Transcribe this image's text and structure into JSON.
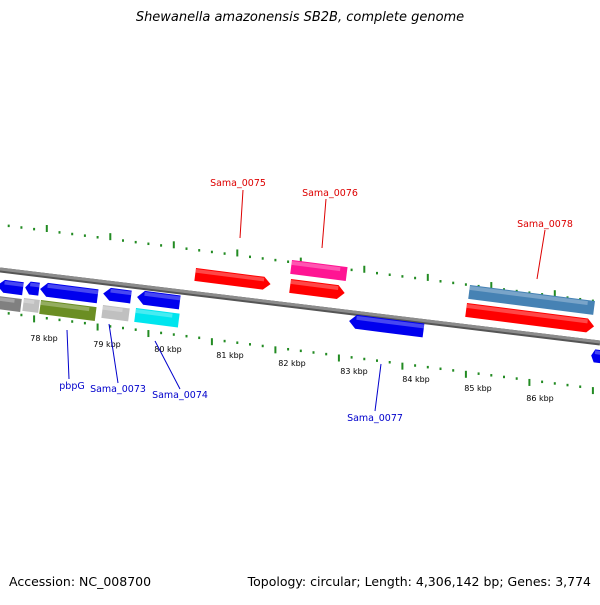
{
  "title": "Shewanella amazonensis SB2B, complete genome",
  "footer": {
    "accession": "Accession: NC_008700",
    "summary": "Topology: circular; Length: 4,306,142 bp; Genes: 3,774"
  },
  "ticks": {
    "labels": [
      "78 kbp",
      "79 kbp",
      "80 kbp",
      "81 kbp",
      "82 kbp",
      "83 kbp",
      "84 kbp",
      "85 kbp",
      "86 kbp"
    ],
    "tick_color": "#228b22"
  },
  "genes": {
    "upper_labels": [
      "Sama_0075",
      "Sama_0076",
      "Sama_0078"
    ],
    "lower_labels": [
      "pbpG",
      "Sama_0073",
      "Sama_0074",
      "Sama_0077"
    ],
    "upper_label_color": "#dd0000",
    "lower_label_color": "#0000cc"
  },
  "colors": {
    "backbone": "#8c8c8c",
    "forward_red": "#ff0000",
    "reverse_blue": "#0000ee",
    "magenta": "#ff1493",
    "steelblue": "#4682b4",
    "olive": "#6b8e23",
    "cyan": "#00e5ee",
    "light_gray": "#c0c0c0",
    "dark_gray": "#808080"
  }
}
